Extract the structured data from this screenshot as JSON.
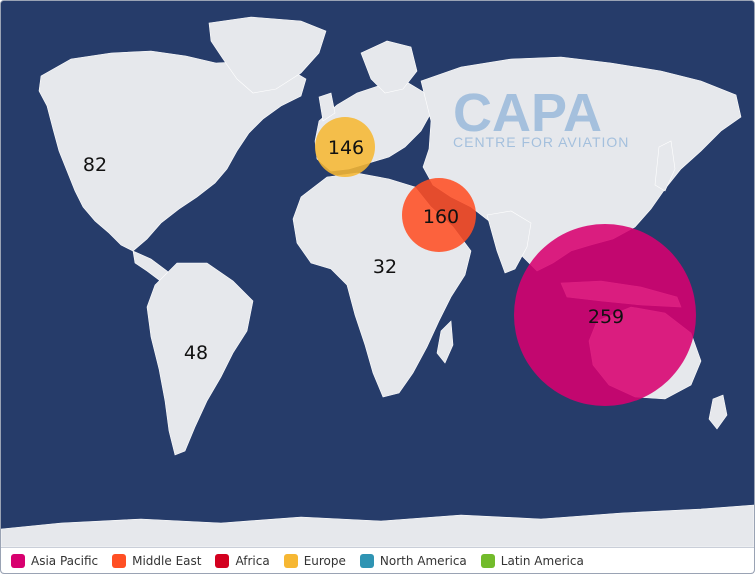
{
  "map": {
    "watermark": {
      "logo_text": "CAPA",
      "logo_subtext": "CENTRE FOR AVIATION"
    },
    "regions": [
      {
        "id": "asia-pacific",
        "name": "Asia Pacific",
        "value": 259,
        "color": "#d8006f",
        "bubble": true
      },
      {
        "id": "middle-east",
        "name": "Middle East",
        "value": 160,
        "color": "#ff4f24",
        "bubble": true
      },
      {
        "id": "africa",
        "name": "Africa",
        "value": 32,
        "color": "#d3001f",
        "bubble": false
      },
      {
        "id": "europe",
        "name": "Europe",
        "value": 146,
        "color": "#f6b733",
        "bubble": true
      },
      {
        "id": "north-america",
        "name": "North America",
        "value": 82,
        "color": "#2f94b3",
        "bubble": false
      },
      {
        "id": "latin-america",
        "name": "Latin America",
        "value": 48,
        "color": "#72bb2b",
        "bubble": false
      }
    ]
  }
}
